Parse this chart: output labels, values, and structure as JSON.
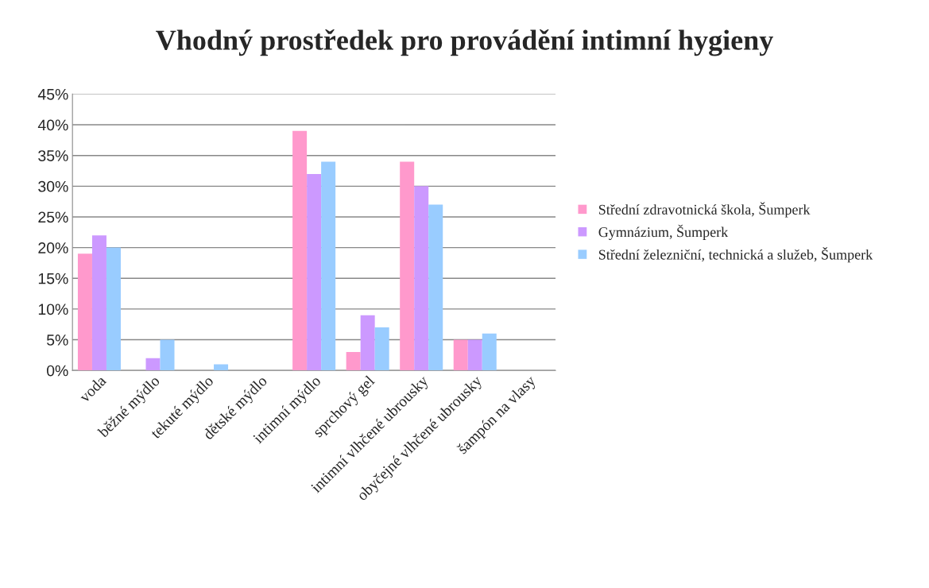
{
  "chart_data": {
    "type": "bar",
    "title": "Vhodný prostředek pro provádění intimní hygieny",
    "categories": [
      "voda",
      "běžné mýdlo",
      "tekuté mýdlo",
      "dětské mýdlo",
      "intimní mýdlo",
      "sprchový gel",
      "intimní vlhčené ubrousky",
      "obyčejné vlhčené ubrousky",
      "šampón na vlasy"
    ],
    "series": [
      {
        "name": "Střední zdravotnická škola, Šumperk",
        "color": "#ff99cc",
        "values": [
          19,
          0,
          0,
          0,
          39,
          3,
          34,
          5,
          0
        ]
      },
      {
        "name": "Gymnázium, Šumperk",
        "color": "#cc99ff",
        "values": [
          22,
          2,
          0,
          0,
          32,
          9,
          30,
          5,
          0
        ]
      },
      {
        "name": "Střední železniční, technická a služeb, Šumperk",
        "color": "#99ccff",
        "values": [
          20,
          5,
          1,
          0,
          34,
          7,
          27,
          6,
          0
        ]
      }
    ],
    "ylim": [
      0,
      45
    ],
    "yticks": [
      {
        "value": 0,
        "label": "0%"
      },
      {
        "value": 5,
        "label": "5%"
      },
      {
        "value": 10,
        "label": "10%"
      },
      {
        "value": 15,
        "label": "15%"
      },
      {
        "value": 20,
        "label": "20%"
      },
      {
        "value": 25,
        "label": "25%"
      },
      {
        "value": 30,
        "label": "30%"
      },
      {
        "value": 35,
        "label": "35%"
      },
      {
        "value": 40,
        "label": "40%"
      },
      {
        "value": 45,
        "label": "45%"
      }
    ],
    "grid": "y",
    "legend": "right"
  }
}
